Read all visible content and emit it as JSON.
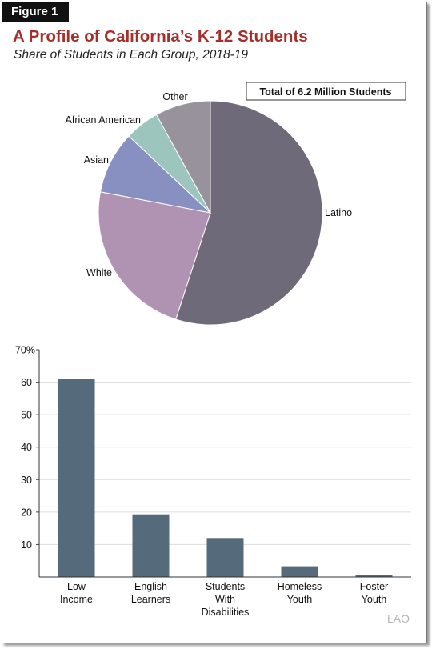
{
  "figure": {
    "tag": "Figure 1",
    "title": "A Profile of California’s K-12 Students",
    "subtitle": "Share of Students in Each Group, 2018-19",
    "watermark": "LAO"
  },
  "chart_data": [
    {
      "type": "pie",
      "annotation": "Total of 6.2 Million Students",
      "slices": [
        {
          "label": "Latino",
          "value": 55,
          "color": "#6f6a7a"
        },
        {
          "label": "White",
          "value": 23,
          "color": "#b093b2"
        },
        {
          "label": "Asian",
          "value": 9,
          "color": "#8790c0"
        },
        {
          "label": "African American",
          "value": 5,
          "color": "#9cc6bd"
        },
        {
          "label": "Other",
          "value": 8,
          "color": "#98929c"
        }
      ]
    },
    {
      "type": "bar",
      "categories": [
        "Low Income",
        "English Learners",
        "Students With Disabilities",
        "Homeless Youth",
        "Foster Youth"
      ],
      "category_lines": [
        [
          "Low",
          "Income"
        ],
        [
          "English",
          "Learners"
        ],
        [
          "Students",
          "With",
          "Disabilities"
        ],
        [
          "Homeless",
          "Youth"
        ],
        [
          "Foster",
          "Youth"
        ]
      ],
      "values": [
        61,
        19.3,
        12,
        3.3,
        0.6
      ],
      "ylim": [
        0,
        70
      ],
      "yticks": [
        10,
        20,
        30,
        40,
        50,
        60
      ],
      "top_tick_label": "70%",
      "bar_color": "#556a7b",
      "grid": true
    }
  ]
}
